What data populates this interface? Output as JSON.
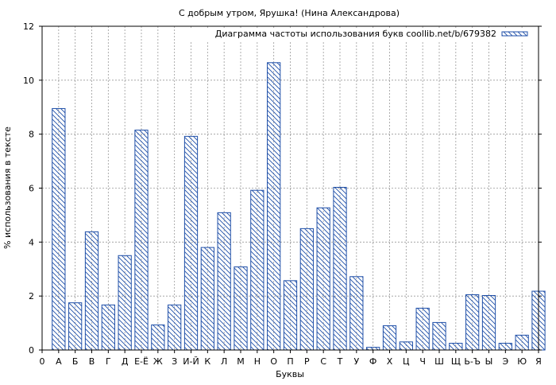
{
  "chart_data": {
    "type": "bar",
    "title": "С добрым утром, Ярушка! (Нина Александрова)",
    "xlabel": "Буквы",
    "ylabel": "% использования в тексте",
    "legend": {
      "label": "Диаграмма частоты использования букв coollib.net/b/679382",
      "placement": "top-right"
    },
    "x_tick_labels": [
      "0",
      "А",
      "Б",
      "В",
      "Г",
      "Д",
      "Е-Ё",
      "Ж",
      "З",
      "И-Й",
      "К",
      "Л",
      "М",
      "Н",
      "О",
      "П",
      "Р",
      "С",
      "Т",
      "У",
      "Ф",
      "Х",
      "Ц",
      "Ч",
      "Ш",
      "Щ",
      "Ь-Ъ",
      "Ы",
      "Э",
      "Ю",
      "Я"
    ],
    "categories": [
      "А",
      "Б",
      "В",
      "Г",
      "Д",
      "Е-Ё",
      "Ж",
      "З",
      "И-Й",
      "К",
      "Л",
      "М",
      "Н",
      "О",
      "П",
      "Р",
      "С",
      "Т",
      "У",
      "Ф",
      "Х",
      "Ц",
      "Ч",
      "Ш",
      "Щ",
      "Ь-Ъ",
      "Ы",
      "Э",
      "Ю",
      "Я"
    ],
    "values": [
      8.95,
      1.75,
      4.38,
      1.67,
      3.5,
      8.15,
      0.93,
      1.67,
      7.92,
      3.8,
      5.09,
      3.08,
      5.92,
      10.65,
      2.57,
      4.5,
      5.27,
      6.03,
      2.72,
      0.1,
      0.9,
      0.3,
      1.55,
      1.02,
      0.25,
      2.05,
      2.02,
      0.25,
      0.55,
      2.18
    ],
    "y_ticks": [
      0,
      2,
      4,
      6,
      8,
      10,
      12
    ],
    "ylim": [
      0,
      12
    ],
    "grid": true,
    "colors": {
      "bar_stroke": "#1f4fa8",
      "hatch": "#1f4fa8",
      "grid": "#999999",
      "axis": "#000000"
    }
  }
}
